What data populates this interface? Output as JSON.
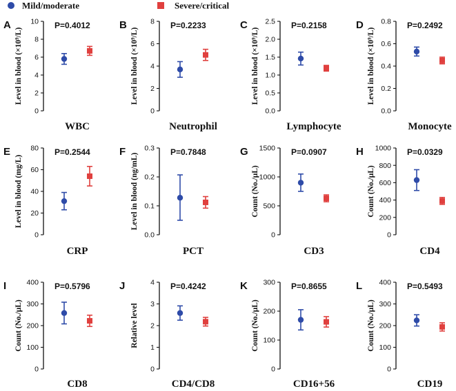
{
  "legend": [
    {
      "label": "Mild/moderate",
      "color": "#2E4BA8",
      "marker": "circle"
    },
    {
      "label": "Severe/critical",
      "color": "#E0403E",
      "marker": "square"
    }
  ],
  "chart_data": [
    {
      "type": "scatter",
      "letter": "A",
      "title": "WBC",
      "ylabel": "Level in blood (×10⁹/L)",
      "pvalue": "P=0.4012",
      "ylim": [
        0,
        10
      ],
      "yticks": [
        0,
        2,
        4,
        6,
        8,
        10
      ],
      "series": [
        {
          "name": "Mild/moderate",
          "mean": 5.8,
          "low": 5.2,
          "high": 6.4
        },
        {
          "name": "Severe/critical",
          "mean": 6.7,
          "low": 6.2,
          "high": 7.2
        }
      ]
    },
    {
      "type": "scatter",
      "letter": "B",
      "title": "Neutrophil",
      "ylabel": "Level in blood (×10⁹/L)",
      "pvalue": "P=0.2233",
      "ylim": [
        0,
        8
      ],
      "yticks": [
        0,
        2,
        4,
        6,
        8
      ],
      "series": [
        {
          "name": "Mild/moderate",
          "mean": 3.7,
          "low": 3.0,
          "high": 4.4
        },
        {
          "name": "Severe/critical",
          "mean": 5.0,
          "low": 4.5,
          "high": 5.5
        }
      ]
    },
    {
      "type": "scatter",
      "letter": "C",
      "title": "Lymphocyte",
      "ylabel": "Level in blood (×10⁹/L)",
      "pvalue": "P=0.2158",
      "ylim": [
        0,
        2.5
      ],
      "yticks": [
        0.0,
        0.5,
        1.0,
        1.5,
        2.0,
        2.5
      ],
      "decimals": 1,
      "series": [
        {
          "name": "Mild/moderate",
          "mean": 1.46,
          "low": 1.28,
          "high": 1.64
        },
        {
          "name": "Severe/critical",
          "mean": 1.19,
          "low": 1.11,
          "high": 1.27
        }
      ]
    },
    {
      "type": "scatter",
      "letter": "D",
      "title": "Monocyte",
      "ylabel": "Level in blood (×10⁹/L)",
      "pvalue": "P=0.2492",
      "ylim": [
        0,
        0.8
      ],
      "yticks": [
        0.0,
        0.2,
        0.4,
        0.6,
        0.8
      ],
      "decimals": 1,
      "series": [
        {
          "name": "Mild/moderate",
          "mean": 0.53,
          "low": 0.49,
          "high": 0.57
        },
        {
          "name": "Severe/critical",
          "mean": 0.45,
          "low": 0.42,
          "high": 0.48
        }
      ]
    },
    {
      "type": "scatter",
      "letter": "E",
      "title": "CRP",
      "ylabel": "Level in blood (mg/L)",
      "pvalue": "P=0.2544",
      "ylim": [
        0,
        80
      ],
      "yticks": [
        0,
        20,
        40,
        60,
        80
      ],
      "series": [
        {
          "name": "Mild/moderate",
          "mean": 31,
          "low": 23,
          "high": 39
        },
        {
          "name": "Severe/critical",
          "mean": 54,
          "low": 45,
          "high": 63
        }
      ]
    },
    {
      "type": "scatter",
      "letter": "F",
      "title": "PCT",
      "ylabel": "Level in blood (ng/mL)",
      "pvalue": "P=0.7848",
      "ylim": [
        0,
        0.3
      ],
      "yticks": [
        0.0,
        0.1,
        0.2,
        0.3
      ],
      "decimals": 1,
      "series": [
        {
          "name": "Mild/moderate",
          "mean": 0.128,
          "low": 0.05,
          "high": 0.207
        },
        {
          "name": "Severe/critical",
          "mean": 0.112,
          "low": 0.092,
          "high": 0.132
        }
      ]
    },
    {
      "type": "scatter",
      "letter": "G",
      "title": "CD3",
      "ylabel": "Count (No./μL)",
      "pvalue": "P=0.0907",
      "ylim": [
        0,
        1500
      ],
      "yticks": [
        0,
        500,
        1000,
        1500
      ],
      "series": [
        {
          "name": "Mild/moderate",
          "mean": 900,
          "low": 750,
          "high": 1050
        },
        {
          "name": "Severe/critical",
          "mean": 630,
          "low": 570,
          "high": 690
        }
      ]
    },
    {
      "type": "scatter",
      "letter": "H",
      "title": "CD4",
      "ylabel": "Count (No./μL)",
      "pvalue": "P=0.0329",
      "ylim": [
        0,
        1000
      ],
      "yticks": [
        0,
        200,
        400,
        600,
        800,
        1000
      ],
      "series": [
        {
          "name": "Mild/moderate",
          "mean": 630,
          "low": 510,
          "high": 750
        },
        {
          "name": "Severe/critical",
          "mean": 390,
          "low": 350,
          "high": 430
        }
      ]
    },
    {
      "type": "scatter",
      "letter": "I",
      "title": "CD8",
      "ylabel": "Count (No./μL)",
      "pvalue": "P=0.5796",
      "ylim": [
        0,
        400
      ],
      "yticks": [
        0,
        100,
        200,
        300,
        400
      ],
      "series": [
        {
          "name": "Mild/moderate",
          "mean": 258,
          "low": 208,
          "high": 308
        },
        {
          "name": "Severe/critical",
          "mean": 222,
          "low": 196,
          "high": 248
        }
      ]
    },
    {
      "type": "scatter",
      "letter": "J",
      "title": "CD4/CD8",
      "ylabel": "Relative level",
      "pvalue": "P=0.4242",
      "ylim": [
        0,
        4
      ],
      "yticks": [
        0,
        1,
        2,
        3,
        4
      ],
      "series": [
        {
          "name": "Mild/moderate",
          "mean": 2.58,
          "low": 2.25,
          "high": 2.91
        },
        {
          "name": "Severe/critical",
          "mean": 2.18,
          "low": 1.98,
          "high": 2.38
        }
      ]
    },
    {
      "type": "scatter",
      "letter": "K",
      "title": "CD16+56",
      "ylabel": "Count (No./μL)",
      "pvalue": "P=0.8655",
      "ylim": [
        0,
        300
      ],
      "yticks": [
        0,
        100,
        200,
        300
      ],
      "series": [
        {
          "name": "Mild/moderate",
          "mean": 170,
          "low": 135,
          "high": 205
        },
        {
          "name": "Severe/critical",
          "mean": 163,
          "low": 145,
          "high": 181
        }
      ]
    },
    {
      "type": "scatter",
      "letter": "L",
      "title": "CD19",
      "ylabel": "Count (No./μL)",
      "pvalue": "P=0.5493",
      "ylim": [
        0,
        400
      ],
      "yticks": [
        0,
        100,
        200,
        300,
        400
      ],
      "series": [
        {
          "name": "Mild/moderate",
          "mean": 224,
          "low": 198,
          "high": 250
        },
        {
          "name": "Severe/critical",
          "mean": 194,
          "low": 175,
          "high": 213
        }
      ]
    }
  ]
}
